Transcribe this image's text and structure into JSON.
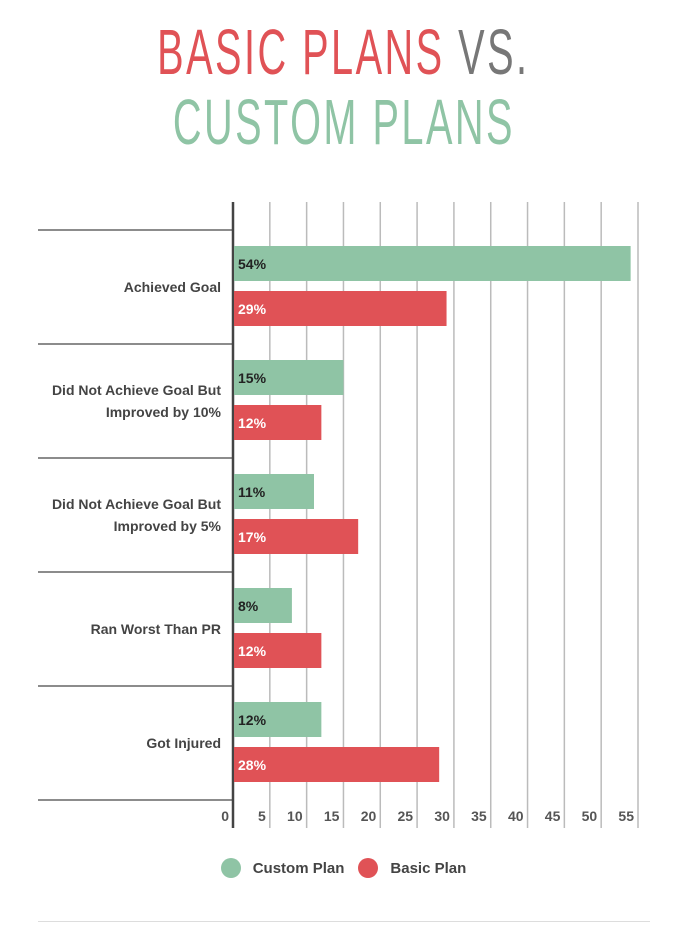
{
  "title": {
    "part1": "BASIC PLANS",
    "part2": "VS.",
    "part3": "CUSTOM PLANS"
  },
  "colors": {
    "basic": "#e05256",
    "custom": "#8fc4a5",
    "vs": "#777777"
  },
  "chart_data": {
    "type": "bar",
    "orientation": "horizontal",
    "categories": [
      "Achieved Goal",
      "Did Not Achieve Goal But Improved by 10%",
      "Did Not Achieve Goal But Improved by 5%",
      "Ran Worst Than PR",
      "Got Injured"
    ],
    "series": [
      {
        "name": "Custom Plan",
        "color": "#8fc4a5",
        "values": [
          54,
          15,
          11,
          8,
          12
        ],
        "labels": [
          "54%",
          "15%",
          "11%",
          "8%",
          "12%"
        ]
      },
      {
        "name": "Basic Plan",
        "color": "#e05256",
        "values": [
          29,
          12,
          17,
          12,
          28
        ],
        "labels": [
          "29%",
          "12%",
          "17%",
          "12%",
          "28%"
        ]
      }
    ],
    "xlim": [
      0,
      55
    ],
    "xticks": [
      "0",
      "5",
      "10",
      "15",
      "20",
      "25",
      "30",
      "35",
      "40",
      "45",
      "50",
      "55"
    ],
    "grid": true,
    "legend": "bottom"
  }
}
